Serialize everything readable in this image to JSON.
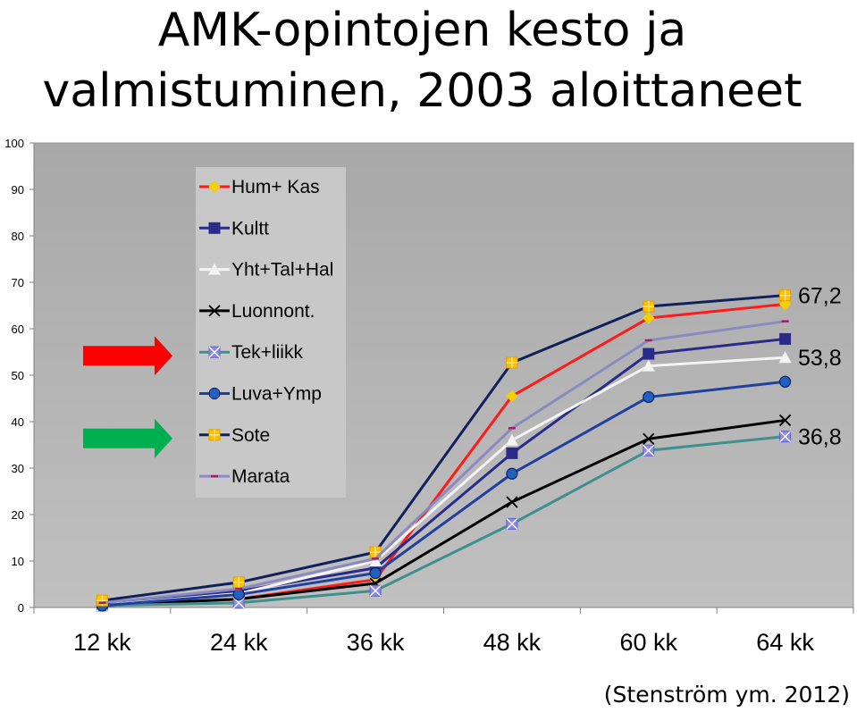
{
  "slide": {
    "title_line1": "AMK-opintojen kesto ja",
    "title_line2": "valmistuminen, 2003 aloittaneet",
    "citation": "(Stenström ym. 2012)"
  },
  "chart_data": {
    "type": "line",
    "title": "",
    "xlabel": "",
    "ylabel": "",
    "categories": [
      "12 kk",
      "24 kk",
      "36 kk",
      "48 kk",
      "60 kk",
      "64 kk"
    ],
    "ylim": [
      0,
      100
    ],
    "yticks": [
      0,
      10,
      20,
      30,
      40,
      50,
      60,
      70,
      80,
      90,
      100
    ],
    "grid": false,
    "plot_background": "#c0c0c0",
    "legend_position": "top-left",
    "series": [
      {
        "name": "Hum+ Kas",
        "color": "#ff1a1a",
        "marker": "diamond",
        "marker_color": "#f5d000",
        "values": [
          0.3,
          1.8,
          6.0,
          45.5,
          62.3,
          65.3
        ]
      },
      {
        "name": "Kultt",
        "color": "#2a2a8a",
        "marker": "square",
        "marker_color": "#2a2a8a",
        "values": [
          0.8,
          3.5,
          8.5,
          33.2,
          54.6,
          57.8
        ]
      },
      {
        "name": "Yht+Tal+Hal",
        "color": "#f4f4f4",
        "marker": "triangle",
        "marker_color": "#f4f4f4",
        "values": [
          0.5,
          3.0,
          10.0,
          36.0,
          52.0,
          53.8
        ]
      },
      {
        "name": "Luonnont.",
        "color": "#000000",
        "marker": "x",
        "marker_color": "#000000",
        "values": [
          0.5,
          1.8,
          5.2,
          22.7,
          36.3,
          40.3
        ]
      },
      {
        "name": "Tek+liikk",
        "color": "#3f8f8f",
        "marker": "asterisk",
        "marker_color": "#8a8ae6",
        "values": [
          0.4,
          1.0,
          3.6,
          18.0,
          33.8,
          36.8
        ]
      },
      {
        "name": "Luva+Ymp",
        "color": "#2040a0",
        "marker": "circle",
        "marker_color": "#2060c0",
        "values": [
          0.4,
          2.8,
          7.4,
          28.8,
          45.3,
          48.6
        ]
      },
      {
        "name": "Sote",
        "color": "#10205a",
        "marker": "square-cross",
        "marker_color": "#ffc000",
        "values": [
          1.5,
          5.4,
          11.9,
          52.7,
          64.8,
          67.2
        ]
      },
      {
        "name": "Marata",
        "color": "#8a8ac0",
        "marker": "dash",
        "marker_color": "#a02060",
        "values": [
          1.0,
          4.0,
          10.5,
          38.6,
          57.5,
          61.6
        ]
      }
    ],
    "annotations": [
      {
        "text": "67,2",
        "value": 67.2
      },
      {
        "text": "53,8",
        "value": 53.8
      },
      {
        "text": "36,8",
        "value": 36.8
      }
    ],
    "arrows": [
      {
        "color": "#ff0000",
        "points_to": "Tek+liikk"
      },
      {
        "color": "#00b050",
        "points_to": "Sote"
      }
    ]
  }
}
